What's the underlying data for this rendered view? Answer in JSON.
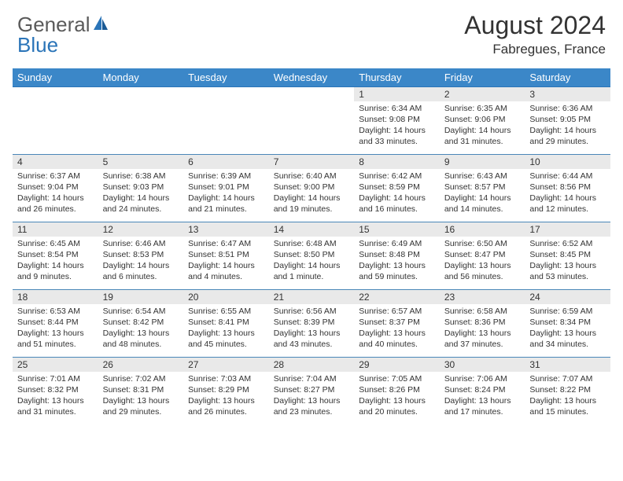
{
  "logo": {
    "text1": "General",
    "text2": "Blue"
  },
  "title": "August 2024",
  "location": "Fabregues, France",
  "colors": {
    "header_bg": "#3b87c8",
    "daynum_bg": "#e9e9e9",
    "border": "#4a87b8",
    "text": "#333333",
    "logo_gray": "#5a5a5a",
    "logo_blue": "#2a74b8"
  },
  "weekdays": [
    "Sunday",
    "Monday",
    "Tuesday",
    "Wednesday",
    "Thursday",
    "Friday",
    "Saturday"
  ],
  "weeks": [
    [
      null,
      null,
      null,
      null,
      {
        "n": "1",
        "sr": "6:34 AM",
        "ss": "9:08 PM",
        "dl": "14 hours and 33 minutes."
      },
      {
        "n": "2",
        "sr": "6:35 AM",
        "ss": "9:06 PM",
        "dl": "14 hours and 31 minutes."
      },
      {
        "n": "3",
        "sr": "6:36 AM",
        "ss": "9:05 PM",
        "dl": "14 hours and 29 minutes."
      }
    ],
    [
      {
        "n": "4",
        "sr": "6:37 AM",
        "ss": "9:04 PM",
        "dl": "14 hours and 26 minutes."
      },
      {
        "n": "5",
        "sr": "6:38 AM",
        "ss": "9:03 PM",
        "dl": "14 hours and 24 minutes."
      },
      {
        "n": "6",
        "sr": "6:39 AM",
        "ss": "9:01 PM",
        "dl": "14 hours and 21 minutes."
      },
      {
        "n": "7",
        "sr": "6:40 AM",
        "ss": "9:00 PM",
        "dl": "14 hours and 19 minutes."
      },
      {
        "n": "8",
        "sr": "6:42 AM",
        "ss": "8:59 PM",
        "dl": "14 hours and 16 minutes."
      },
      {
        "n": "9",
        "sr": "6:43 AM",
        "ss": "8:57 PM",
        "dl": "14 hours and 14 minutes."
      },
      {
        "n": "10",
        "sr": "6:44 AM",
        "ss": "8:56 PM",
        "dl": "14 hours and 12 minutes."
      }
    ],
    [
      {
        "n": "11",
        "sr": "6:45 AM",
        "ss": "8:54 PM",
        "dl": "14 hours and 9 minutes."
      },
      {
        "n": "12",
        "sr": "6:46 AM",
        "ss": "8:53 PM",
        "dl": "14 hours and 6 minutes."
      },
      {
        "n": "13",
        "sr": "6:47 AM",
        "ss": "8:51 PM",
        "dl": "14 hours and 4 minutes."
      },
      {
        "n": "14",
        "sr": "6:48 AM",
        "ss": "8:50 PM",
        "dl": "14 hours and 1 minute."
      },
      {
        "n": "15",
        "sr": "6:49 AM",
        "ss": "8:48 PM",
        "dl": "13 hours and 59 minutes."
      },
      {
        "n": "16",
        "sr": "6:50 AM",
        "ss": "8:47 PM",
        "dl": "13 hours and 56 minutes."
      },
      {
        "n": "17",
        "sr": "6:52 AM",
        "ss": "8:45 PM",
        "dl": "13 hours and 53 minutes."
      }
    ],
    [
      {
        "n": "18",
        "sr": "6:53 AM",
        "ss": "8:44 PM",
        "dl": "13 hours and 51 minutes."
      },
      {
        "n": "19",
        "sr": "6:54 AM",
        "ss": "8:42 PM",
        "dl": "13 hours and 48 minutes."
      },
      {
        "n": "20",
        "sr": "6:55 AM",
        "ss": "8:41 PM",
        "dl": "13 hours and 45 minutes."
      },
      {
        "n": "21",
        "sr": "6:56 AM",
        "ss": "8:39 PM",
        "dl": "13 hours and 43 minutes."
      },
      {
        "n": "22",
        "sr": "6:57 AM",
        "ss": "8:37 PM",
        "dl": "13 hours and 40 minutes."
      },
      {
        "n": "23",
        "sr": "6:58 AM",
        "ss": "8:36 PM",
        "dl": "13 hours and 37 minutes."
      },
      {
        "n": "24",
        "sr": "6:59 AM",
        "ss": "8:34 PM",
        "dl": "13 hours and 34 minutes."
      }
    ],
    [
      {
        "n": "25",
        "sr": "7:01 AM",
        "ss": "8:32 PM",
        "dl": "13 hours and 31 minutes."
      },
      {
        "n": "26",
        "sr": "7:02 AM",
        "ss": "8:31 PM",
        "dl": "13 hours and 29 minutes."
      },
      {
        "n": "27",
        "sr": "7:03 AM",
        "ss": "8:29 PM",
        "dl": "13 hours and 26 minutes."
      },
      {
        "n": "28",
        "sr": "7:04 AM",
        "ss": "8:27 PM",
        "dl": "13 hours and 23 minutes."
      },
      {
        "n": "29",
        "sr": "7:05 AM",
        "ss": "8:26 PM",
        "dl": "13 hours and 20 minutes."
      },
      {
        "n": "30",
        "sr": "7:06 AM",
        "ss": "8:24 PM",
        "dl": "13 hours and 17 minutes."
      },
      {
        "n": "31",
        "sr": "7:07 AM",
        "ss": "8:22 PM",
        "dl": "13 hours and 15 minutes."
      }
    ]
  ],
  "labels": {
    "sunrise": "Sunrise: ",
    "sunset": "Sunset: ",
    "daylight": "Daylight: "
  }
}
